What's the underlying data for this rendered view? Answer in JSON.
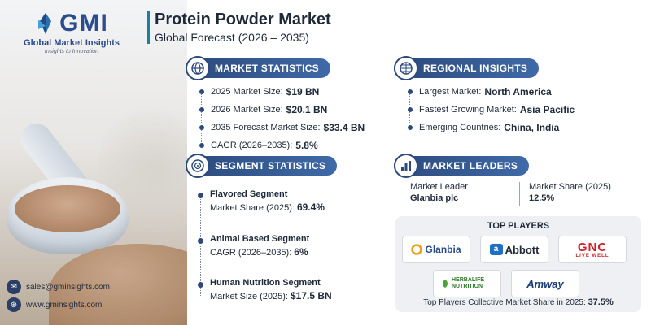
{
  "brand": {
    "logo_text": "GMI",
    "name": "Global Market Insights",
    "tagline": "Insights to Innovation"
  },
  "header": {
    "title": "Protein Powder Market",
    "subtitle": "Global Forecast (2026 – 2035)"
  },
  "market_statistics": {
    "heading": "MARKET STATISTICS",
    "icon": "globe-chart-icon",
    "items": [
      {
        "label": "2025 Market Size:",
        "value": "$19 BN"
      },
      {
        "label": "2026 Market Size:",
        "value": "$20.1 BN"
      },
      {
        "label": "2035 Forecast Market Size:",
        "value": "$33.4 BN"
      },
      {
        "label": "CAGR (2026–2035):",
        "value": "5.8%"
      }
    ]
  },
  "regional_insights": {
    "heading": "REGIONAL INSIGHTS",
    "icon": "globe-icon",
    "items": [
      {
        "label": "Largest Market:",
        "value": "North America"
      },
      {
        "label": "Fastest Growing Market:",
        "value": "Asia Pacific"
      },
      {
        "label": "Emerging Countries:",
        "value": "China, India"
      }
    ]
  },
  "segment_statistics": {
    "heading": "SEGMENT STATISTICS",
    "icon": "target-icon",
    "items": [
      {
        "name": "Flavored Segment",
        "label": "Market Share (2025):",
        "value": "69.4%"
      },
      {
        "name": "Animal Based Segment",
        "label": "CAGR (2026–2035):",
        "value": "6%"
      },
      {
        "name": "Human Nutrition Segment",
        "label": "Market Size (2025):",
        "value": "$17.5 BN"
      }
    ]
  },
  "market_leaders": {
    "heading": "MARKET LEADERS",
    "icon": "bar-chart-icon",
    "leader_label": "Market Leader",
    "leader_value": "Glanbia plc",
    "share_label": "Market Share (2025)",
    "share_value": "12.5%"
  },
  "top_players": {
    "heading": "TOP PLAYERS",
    "logos": [
      "Glanbia",
      "Abbott",
      "GNC",
      "HERBALIFE NUTRITION",
      "Amway"
    ],
    "gnc_tagline": "LIVE WELL",
    "footer_label": "Top Players Collective Market Share in 2025:",
    "footer_value": "37.5%"
  },
  "contact": {
    "email": "sales@gminsights.com",
    "website": "www.gminsights.com"
  },
  "colors": {
    "accent": "#2c4a7c",
    "accent_light": "#3f6aa8",
    "title_bar": "#1d7fa0"
  }
}
